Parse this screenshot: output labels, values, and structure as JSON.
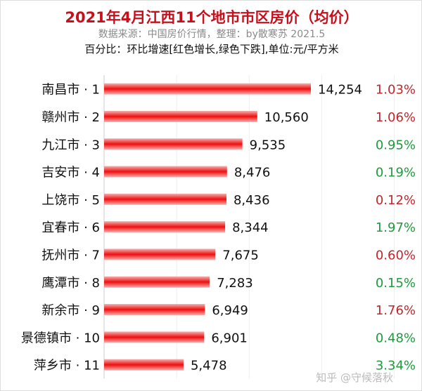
{
  "chart_data": {
    "type": "bar",
    "orientation": "horizontal",
    "title": "2021年4月江西11个地市市区房价（均价）",
    "subtitle": "数据来源：中国房价行情，整理：by散寒苏 2021.5",
    "note": "百分比：环比增速[红色增长,绿色下跌],单位:元/平方米",
    "categories": [
      "南昌市 · 1",
      "赣州市 · 2",
      "九江市 · 3",
      "吉安市 · 4",
      "上饶市 · 5",
      "宜春市 · 6",
      "抚州市 · 7",
      "鹰潭市 · 8",
      "新余市 · 9",
      "景德镇市 · 10",
      "萍乡市 · 11"
    ],
    "values": [
      14254,
      10560,
      9535,
      8476,
      8436,
      8344,
      7675,
      7283,
      6949,
      6901,
      5478
    ],
    "value_labels": [
      "14,254",
      "10,560",
      "9,535",
      "8,476",
      "8,436",
      "8,344",
      "7,675",
      "7,283",
      "6,949",
      "6,901",
      "5,478"
    ],
    "mom_change": [
      "1.03%",
      "1.06%",
      "0.95%",
      "0.19%",
      "0.12%",
      "1.97%",
      "0.60%",
      "0.15%",
      "1.76%",
      "0.48%",
      "3.34%"
    ],
    "mom_direction": [
      "up",
      "up",
      "down",
      "down",
      "up",
      "down",
      "up",
      "down",
      "up",
      "down",
      "down"
    ],
    "xlim": [
      0,
      20000
    ],
    "grid": true,
    "colors": {
      "bar": "#ee1111",
      "up": "#c0272d",
      "down": "#1f9a3c",
      "title": "#c8101c"
    }
  },
  "watermark": "知乎 @守候落秋"
}
